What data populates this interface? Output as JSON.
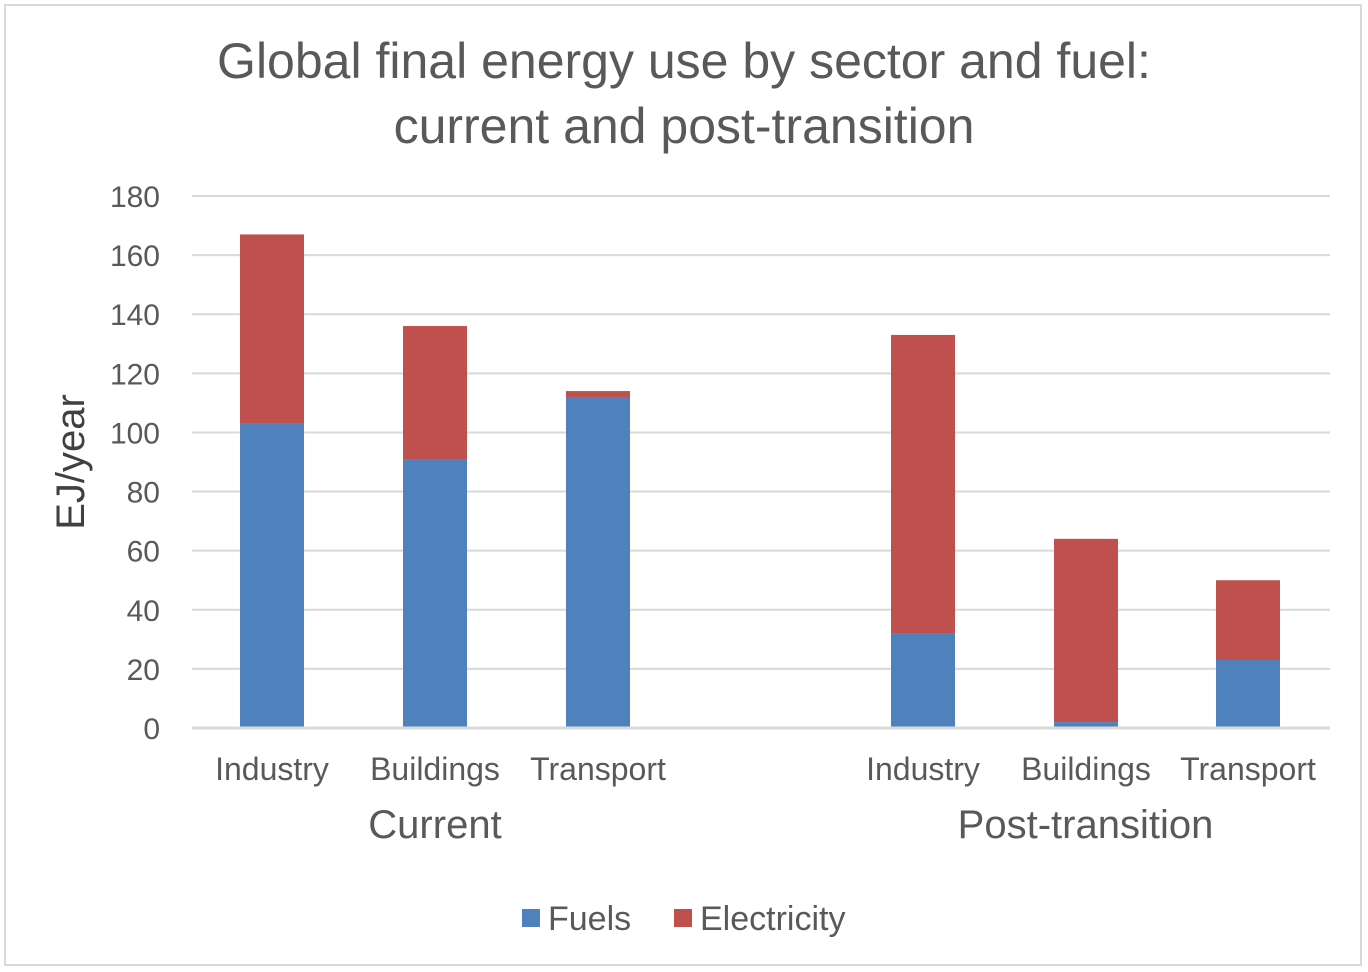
{
  "chart_data": {
    "type": "bar",
    "stacked": true,
    "title": [
      "Global final energy use by sector and fuel:",
      "current and post-transition"
    ],
    "ylabel": "EJ/year",
    "ylim": [
      0,
      180
    ],
    "yticks": [
      0,
      20,
      40,
      60,
      80,
      100,
      120,
      140,
      160,
      180
    ],
    "grid": true,
    "legend_position": "bottom",
    "groups": [
      {
        "label": "Current",
        "categories": [
          "Industry",
          "Buildings",
          "Transport"
        ]
      },
      {
        "label": "Post-transition",
        "categories": [
          "Industry",
          "Buildings",
          "Transport"
        ]
      }
    ],
    "series": [
      {
        "name": "Fuels",
        "color": "#4f81bd",
        "values": [
          103,
          91,
          112,
          32,
          2,
          23
        ]
      },
      {
        "name": "Electricity",
        "color": "#c0504d",
        "values": [
          64,
          45,
          2,
          101,
          62,
          27
        ]
      }
    ]
  }
}
